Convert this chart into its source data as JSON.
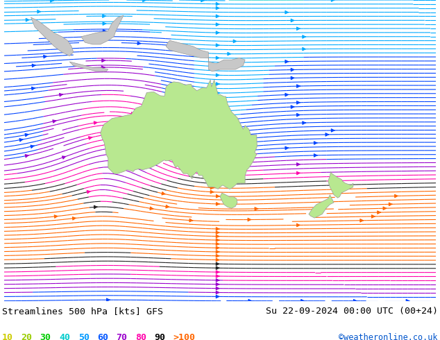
{
  "title_left": "Streamlines 500 hPa [kts] GFS",
  "title_right": "Su 22-09-2024 00:00 UTC (00+24)",
  "credit": "©weatheronline.co.uk",
  "legend_values": [
    "10",
    "20",
    "30",
    "40",
    "50",
    "60",
    "70",
    "80",
    "90",
    ">100"
  ],
  "legend_colors": [
    "#cccc00",
    "#99cc00",
    "#00cc00",
    "#00cccc",
    "#0099ff",
    "#0055ff",
    "#9900cc",
    "#ff00aa",
    "#000000",
    "#ff6600"
  ],
  "bg_color": "#d0d0d0",
  "ocean_color": "#d0d0d0",
  "land_color": "#c8c8c8",
  "australia_color": "#b8e890",
  "nz_color": "#b8e890",
  "text_color": "#000000",
  "bar_color": "#ffffff",
  "figwidth": 6.34,
  "figheight": 4.9,
  "dpi": 100,
  "lon_min": 88,
  "lon_max": 200,
  "lat_min": -68,
  "lat_max": 10
}
